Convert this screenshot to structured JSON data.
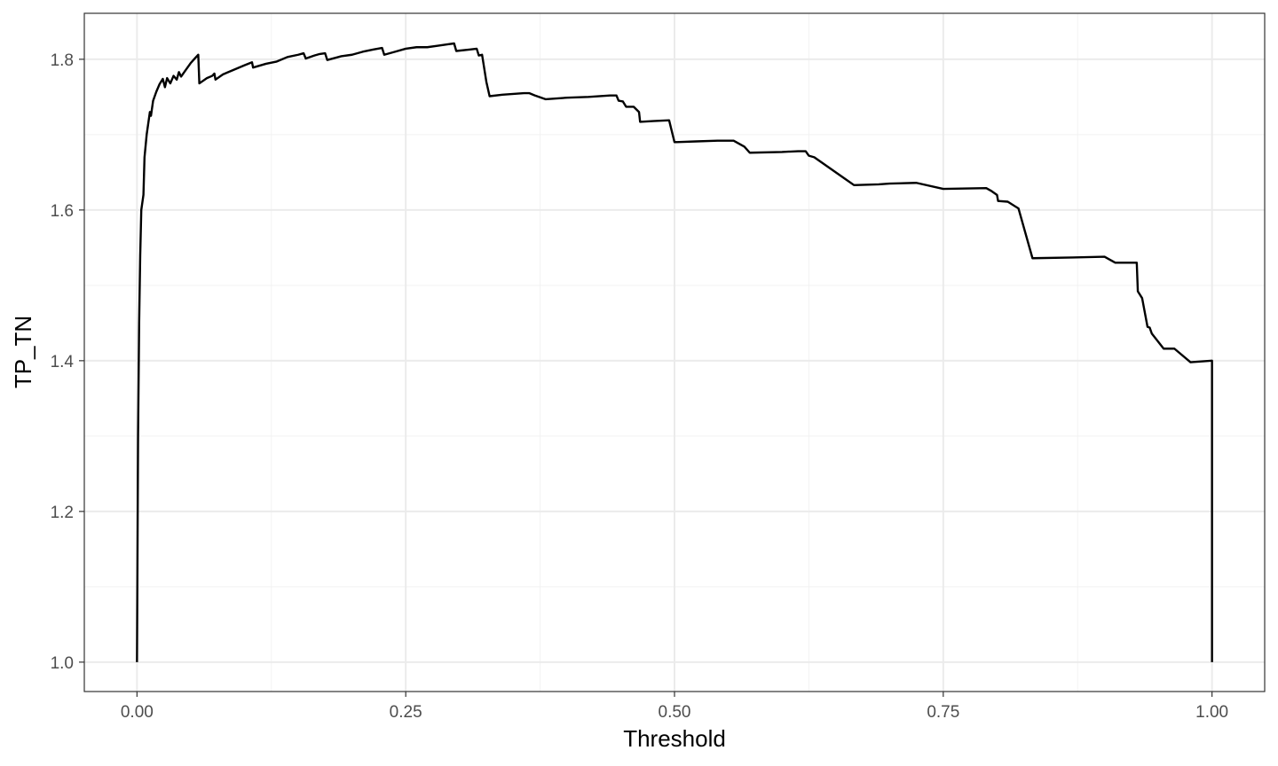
{
  "chart_data": {
    "type": "line",
    "xlabel": "Threshold",
    "ylabel": "TP_TN",
    "xlim": [
      -0.049,
      1.049
    ],
    "ylim": [
      0.961,
      1.861
    ],
    "x_ticks": [
      0.0,
      0.25,
      0.5,
      0.75,
      1.0
    ],
    "x_tick_labels": [
      "0.00",
      "0.25",
      "0.50",
      "0.75",
      "1.00"
    ],
    "y_ticks": [
      1.0,
      1.2,
      1.4,
      1.6,
      1.8
    ],
    "y_tick_labels": [
      "1.0",
      "1.2",
      "1.4",
      "1.6",
      "1.8"
    ],
    "grid": true,
    "line_color": "#000000",
    "series": [
      {
        "points": [
          [
            0.0,
            1.0
          ],
          [
            0.001,
            1.3
          ],
          [
            0.002,
            1.45
          ],
          [
            0.003,
            1.54
          ],
          [
            0.004,
            1.6
          ],
          [
            0.006,
            1.62
          ],
          [
            0.007,
            1.67
          ],
          [
            0.009,
            1.7
          ],
          [
            0.011,
            1.72
          ],
          [
            0.012,
            1.73
          ],
          [
            0.013,
            1.725
          ],
          [
            0.015,
            1.745
          ],
          [
            0.018,
            1.757
          ],
          [
            0.021,
            1.767
          ],
          [
            0.024,
            1.774
          ],
          [
            0.026,
            1.763
          ],
          [
            0.028,
            1.775
          ],
          [
            0.031,
            1.768
          ],
          [
            0.034,
            1.778
          ],
          [
            0.037,
            1.773
          ],
          [
            0.039,
            1.783
          ],
          [
            0.041,
            1.777
          ],
          [
            0.045,
            1.785
          ],
          [
            0.05,
            1.795
          ],
          [
            0.055,
            1.803
          ],
          [
            0.057,
            1.806
          ],
          [
            0.058,
            1.768
          ],
          [
            0.065,
            1.775
          ],
          [
            0.07,
            1.778
          ],
          [
            0.072,
            1.781
          ],
          [
            0.073,
            1.773
          ],
          [
            0.08,
            1.78
          ],
          [
            0.09,
            1.786
          ],
          [
            0.1,
            1.792
          ],
          [
            0.107,
            1.796
          ],
          [
            0.108,
            1.789
          ],
          [
            0.12,
            1.794
          ],
          [
            0.13,
            1.797
          ],
          [
            0.14,
            1.803
          ],
          [
            0.15,
            1.806
          ],
          [
            0.155,
            1.808
          ],
          [
            0.157,
            1.801
          ],
          [
            0.165,
            1.805
          ],
          [
            0.17,
            1.807
          ],
          [
            0.175,
            1.808
          ],
          [
            0.177,
            1.799
          ],
          [
            0.19,
            1.804
          ],
          [
            0.2,
            1.806
          ],
          [
            0.21,
            1.81
          ],
          [
            0.22,
            1.813
          ],
          [
            0.228,
            1.815
          ],
          [
            0.23,
            1.806
          ],
          [
            0.24,
            1.81
          ],
          [
            0.25,
            1.814
          ],
          [
            0.26,
            1.816
          ],
          [
            0.27,
            1.816
          ],
          [
            0.28,
            1.818
          ],
          [
            0.29,
            1.82
          ],
          [
            0.295,
            1.821
          ],
          [
            0.297,
            1.811
          ],
          [
            0.31,
            1.813
          ],
          [
            0.316,
            1.814
          ],
          [
            0.318,
            1.805
          ],
          [
            0.321,
            1.806
          ],
          [
            0.325,
            1.77
          ],
          [
            0.328,
            1.751
          ],
          [
            0.34,
            1.753
          ],
          [
            0.36,
            1.755
          ],
          [
            0.365,
            1.755
          ],
          [
            0.37,
            1.752
          ],
          [
            0.38,
            1.747
          ],
          [
            0.4,
            1.749
          ],
          [
            0.42,
            1.75
          ],
          [
            0.44,
            1.752
          ],
          [
            0.446,
            1.752
          ],
          [
            0.448,
            1.745
          ],
          [
            0.452,
            1.744
          ],
          [
            0.455,
            1.737
          ],
          [
            0.462,
            1.737
          ],
          [
            0.467,
            1.73
          ],
          [
            0.468,
            1.717
          ],
          [
            0.48,
            1.718
          ],
          [
            0.495,
            1.719
          ],
          [
            0.5,
            1.69
          ],
          [
            0.52,
            1.691
          ],
          [
            0.54,
            1.692
          ],
          [
            0.555,
            1.692
          ],
          [
            0.565,
            1.684
          ],
          [
            0.57,
            1.676
          ],
          [
            0.6,
            1.677
          ],
          [
            0.615,
            1.678
          ],
          [
            0.622,
            1.678
          ],
          [
            0.625,
            1.672
          ],
          [
            0.63,
            1.67
          ],
          [
            0.66,
            1.64
          ],
          [
            0.667,
            1.633
          ],
          [
            0.69,
            1.634
          ],
          [
            0.7,
            1.635
          ],
          [
            0.725,
            1.636
          ],
          [
            0.75,
            1.628
          ],
          [
            0.79,
            1.629
          ],
          [
            0.795,
            1.625
          ],
          [
            0.8,
            1.62
          ],
          [
            0.801,
            1.612
          ],
          [
            0.81,
            1.611
          ],
          [
            0.82,
            1.602
          ],
          [
            0.833,
            1.536
          ],
          [
            0.87,
            1.537
          ],
          [
            0.9,
            1.538
          ],
          [
            0.91,
            1.53
          ],
          [
            0.93,
            1.53
          ],
          [
            0.931,
            1.492
          ],
          [
            0.935,
            1.483
          ],
          [
            0.94,
            1.445
          ],
          [
            0.942,
            1.444
          ],
          [
            0.944,
            1.436
          ],
          [
            0.955,
            1.416
          ],
          [
            0.965,
            1.416
          ],
          [
            0.98,
            1.398
          ],
          [
            1.0,
            1.4
          ],
          [
            1.0,
            1.0
          ]
        ]
      }
    ]
  }
}
